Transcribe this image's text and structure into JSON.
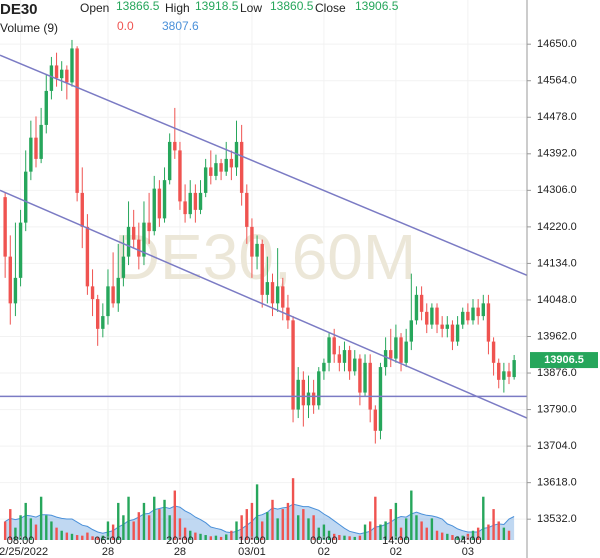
{
  "chart_data": {
    "type": "candlestick",
    "symbol": "DE30",
    "open_label": "Open",
    "high_label": "High",
    "low_label": "Low",
    "close_label": "Close",
    "volume_title": "Volume (9)",
    "volume_now": "0.0",
    "volume_ma_now": "3807.6",
    "watermark": "DE30,60M",
    "up_color": "#26a65b",
    "down_color": "#ef5350",
    "line_color": "#7b7bc4",
    "ma_color": "#4a90d9",
    "grid": true,
    "xlim": [
      -1,
      101.5
    ],
    "ylim": [
      13483,
      14754
    ],
    "yticks": [
      {
        "value": 14650,
        "label": "14650.0"
      },
      {
        "value": 14564,
        "label": "14564.0"
      },
      {
        "value": 14478,
        "label": "14478.0"
      },
      {
        "value": 14392,
        "label": "14392.0"
      },
      {
        "value": 14306,
        "label": "14306.0"
      },
      {
        "value": 14220,
        "label": "14220.0"
      },
      {
        "value": 14134,
        "label": "14134.0"
      },
      {
        "value": 14048,
        "label": "14048.0"
      },
      {
        "value": 13962,
        "label": "13962.0"
      },
      {
        "value": 13876,
        "label": "13876.0"
      },
      {
        "value": 13790,
        "label": "13790.0"
      },
      {
        "value": 13704,
        "label": "13704.0"
      },
      {
        "value": 13618,
        "label": "13618.0"
      },
      {
        "value": 13532,
        "label": "13532.0"
      }
    ],
    "xticks": [
      {
        "value": 3,
        "label": "08:00",
        "date": "02/25/2022"
      },
      {
        "value": 20,
        "label": "06:00",
        "date": "28"
      },
      {
        "value": 34,
        "label": "20:00",
        "date": "28"
      },
      {
        "value": 48,
        "label": "10:00",
        "date": "03/01"
      },
      {
        "value": 62,
        "label": "00:00",
        "date": "02"
      },
      {
        "value": 76,
        "label": "14:00",
        "date": "02"
      },
      {
        "value": 90,
        "label": "04:00",
        "date": "03"
      }
    ],
    "open": [
      14290,
      14150,
      14040,
      14100,
      14230,
      14350,
      14430,
      14380,
      14460,
      14540,
      14600,
      14570,
      14590,
      14560,
      14640,
      14300,
      14220,
      14080,
      14050,
      13980,
      14010,
      14080,
      14040,
      14100,
      14150,
      14220,
      14190,
      14150,
      14230,
      14210,
      14310,
      14240,
      14330,
      14420,
      14400,
      14280,
      14250,
      14300,
      14260,
      14300,
      14360,
      14340,
      14370,
      14350,
      14380,
      14360,
      14420,
      14300,
      14220,
      14150,
      14180,
      14060,
      14090,
      14040,
      14080,
      14030,
      14000,
      13790,
      13860,
      13800,
      13830,
      13800,
      13880,
      13900,
      13960,
      13920,
      13900,
      13930,
      13880,
      13910,
      13830,
      13900,
      13790,
      13740,
      13890,
      13930,
      13910,
      13960,
      13900,
      13950,
      14000,
      14060,
      14020,
      13990,
      14030,
      13990,
      13980,
      13990,
      13950,
      13990,
      14020,
      14000,
      14030,
      14010,
      14040,
      13950,
      13900,
      13860,
      13880,
      13866.5
    ],
    "high": [
      14300,
      14200,
      14230,
      14260,
      14400,
      14470,
      14480,
      14500,
      14580,
      14620,
      14630,
      14610,
      14600,
      14660,
      14645,
      14360,
      14250,
      14120,
      14060,
      14040,
      14120,
      14160,
      14180,
      14200,
      14280,
      14260,
      14230,
      14280,
      14300,
      14340,
      14330,
      14360,
      14440,
      14500,
      14420,
      14320,
      14330,
      14320,
      14330,
      14380,
      14400,
      14390,
      14380,
      14420,
      14400,
      14470,
      14460,
      14320,
      14240,
      14200,
      14190,
      14150,
      14110,
      14170,
      14100,
      14060,
      14010,
      13890,
      13880,
      13870,
      13860,
      13890,
      13910,
      13970,
      13980,
      13940,
      13950,
      13940,
      13930,
      13920,
      13920,
      13920,
      13800,
      13900,
      13960,
      13980,
      13990,
      13970,
      13980,
      14110,
      14080,
      14080,
      14040,
      14040,
      14040,
      14010,
      14010,
      14000,
      14010,
      14030,
      14040,
      14050,
      14050,
      14060,
      14060,
      13960,
      13910,
      13900,
      13900,
      13918.5
    ],
    "low": [
      14100,
      13990,
      14010,
      14080,
      14210,
      14330,
      14360,
      14370,
      14440,
      14520,
      14550,
      14540,
      14520,
      14550,
      14280,
      14170,
      14060,
      14010,
      13940,
      13960,
      13990,
      14030,
      14020,
      14080,
      14130,
      14170,
      14120,
      14130,
      14180,
      14200,
      14220,
      14230,
      14320,
      14380,
      14260,
      14230,
      14240,
      14230,
      14250,
      14290,
      14320,
      14330,
      14330,
      14340,
      14330,
      14340,
      14270,
      14180,
      14100,
      14120,
      14030,
      14040,
      14010,
      14020,
      14000,
      13980,
      13760,
      13770,
      13750,
      13770,
      13780,
      13790,
      13860,
      13880,
      13900,
      13880,
      13880,
      13860,
      13870,
      13800,
      13820,
      13760,
      13710,
      13720,
      13870,
      13890,
      13900,
      13880,
      13890,
      13930,
      13990,
      14000,
      13970,
      13980,
      13970,
      13960,
      13960,
      13930,
      13940,
      13980,
      13990,
      13990,
      13990,
      14000,
      13920,
      13870,
      13840,
      13830,
      13850,
      13860.5
    ],
    "close": [
      14150,
      14040,
      14100,
      14230,
      14350,
      14430,
      14380,
      14460,
      14540,
      14600,
      14570,
      14590,
      14560,
      14640,
      14300,
      14220,
      14080,
      14050,
      13980,
      14010,
      14080,
      14040,
      14100,
      14150,
      14220,
      14190,
      14150,
      14230,
      14210,
      14310,
      14240,
      14330,
      14420,
      14400,
      14280,
      14250,
      14300,
      14260,
      14300,
      14360,
      14340,
      14370,
      14350,
      14380,
      14360,
      14420,
      14300,
      14220,
      14150,
      14180,
      14060,
      14090,
      14040,
      14080,
      14030,
      14000,
      13790,
      13860,
      13800,
      13830,
      13800,
      13880,
      13900,
      13960,
      13920,
      13900,
      13930,
      13880,
      13910,
      13830,
      13900,
      13790,
      13740,
      13890,
      13930,
      13910,
      13960,
      13900,
      13950,
      14000,
      14060,
      14020,
      13990,
      14030,
      13990,
      13980,
      13990,
      13950,
      13990,
      14020,
      14000,
      14030,
      14010,
      14040,
      13950,
      13900,
      13860,
      13880,
      13867,
      13906.5
    ],
    "volume_ylim": [
      0,
      11000
    ],
    "volume": [
      3000,
      5000,
      2000,
      4000,
      6000,
      3500,
      2500,
      7000,
      4000,
      3000,
      2000,
      1500,
      1200,
      1000,
      800,
      700,
      1200,
      600,
      500,
      700,
      3000,
      2500,
      6000,
      4000,
      7000,
      3000,
      4500,
      6000,
      4000,
      7000,
      5000,
      6500,
      4000,
      8000,
      3500,
      2000,
      1500,
      1200,
      1000,
      800,
      600,
      700,
      500,
      900,
      1500,
      3000,
      4000,
      5000,
      6000,
      9000,
      3000,
      4500,
      6500,
      3500,
      5000,
      6000,
      10000,
      4000,
      5000,
      3500,
      4000,
      2000,
      2500,
      1500,
      1000,
      800,
      700,
      600,
      500,
      700,
      2500,
      3000,
      7000,
      2500,
      3000,
      5000,
      6000,
      2000,
      3500,
      8000,
      4000,
      3000,
      2000,
      3500,
      1500,
      1200,
      1000,
      800,
      600,
      700,
      1000,
      1500,
      2000,
      7000,
      2500,
      5000,
      3000,
      2000,
      1500,
      0
    ],
    "volume_ma": [
      3000,
      3500,
      3300,
      3500,
      4000,
      3900,
      3700,
      4100,
      4100,
      4000,
      3700,
      3500,
      3400,
      3400,
      2900,
      2400,
      2200,
      1700,
      1300,
      1100,
      1300,
      1500,
      2100,
      2500,
      3100,
      3300,
      3700,
      4200,
      4300,
      4900,
      5100,
      5300,
      5100,
      5500,
      5300,
      4700,
      4300,
      3700,
      3300,
      2800,
      2100,
      1900,
      1700,
      1300,
      1200,
      1400,
      1800,
      2400,
      3000,
      3900,
      4100,
      4500,
      5200,
      5000,
      5200,
      5300,
      5800,
      5600,
      5400,
      5400,
      5100,
      4800,
      4200,
      3700,
      3100,
      2500,
      1900,
      1400,
      1200,
      1000,
      1200,
      1400,
      2100,
      2200,
      2500,
      2900,
      3500,
      3800,
      3700,
      4200,
      4500,
      4200,
      4000,
      3900,
      3700,
      3400,
      2600,
      2300,
      1800,
      1500,
      1300,
      1300,
      1300,
      1900,
      2000,
      2400,
      2600,
      2500,
      3400,
      3807.6
    ],
    "trend_lines": [
      {
        "x": [
          -1,
          101.5
        ],
        "y": [
          14624,
          14106
        ]
      },
      {
        "x": [
          -1,
          101.5
        ],
        "y": [
          14306,
          13770
        ]
      },
      {
        "x": [
          -1,
          101.5
        ],
        "y": [
          13821,
          13821
        ]
      }
    ]
  }
}
